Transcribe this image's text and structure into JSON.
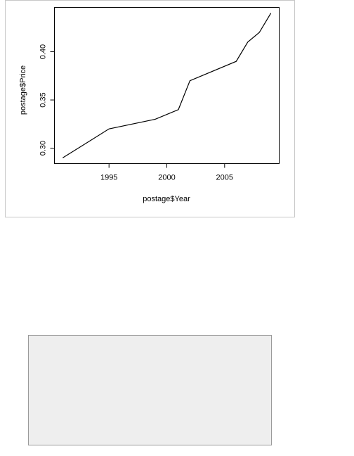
{
  "chart_data": {
    "type": "line",
    "x_label": "postage$Year",
    "y_label": "postage$Price",
    "x": [
      1991,
      1995,
      1999,
      2001,
      2002,
      2006,
      2007,
      2008,
      2009
    ],
    "values": [
      0.29,
      0.32,
      0.33,
      0.34,
      0.37,
      0.39,
      0.41,
      0.42,
      0.44
    ],
    "color": "#000000",
    "xlim": [
      1990.28,
      2009.72
    ],
    "xticks": [
      1995,
      2000,
      2005
    ],
    "ylim": [
      0.284,
      0.446
    ],
    "yticks": [
      {
        "value": 0.3,
        "label": "0.30"
      },
      {
        "value": 0.35,
        "label": "0.35"
      },
      {
        "value": 0.4,
        "label": "0.40"
      }
    ],
    "grid": false
  }
}
